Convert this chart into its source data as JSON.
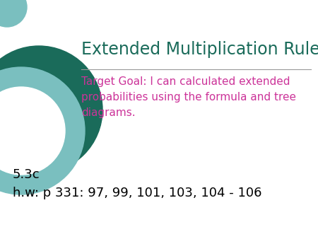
{
  "title": "Extended Multiplication Rules",
  "title_color": "#1a6b5a",
  "title_fontsize": 17,
  "target_goal_text": "Target Goal: I can calculated extended\nprobabilities using the formula and tree\ndiagrams.",
  "target_goal_color": "#cc3399",
  "target_goal_fontsize": 11,
  "hw_line1": "5.3c",
  "hw_line2": "h.w: p 331: 97, 99, 101, 103, 104 - 106",
  "hw_color": "#000000",
  "hw_fontsize": 13,
  "background_color": "#ffffff",
  "separator_color": "#999999",
  "circle_outer_color": "#1a6b5a",
  "circle_inner_color": "#7abfbf",
  "fig_width": 4.5,
  "fig_height": 3.38,
  "dpi": 100
}
